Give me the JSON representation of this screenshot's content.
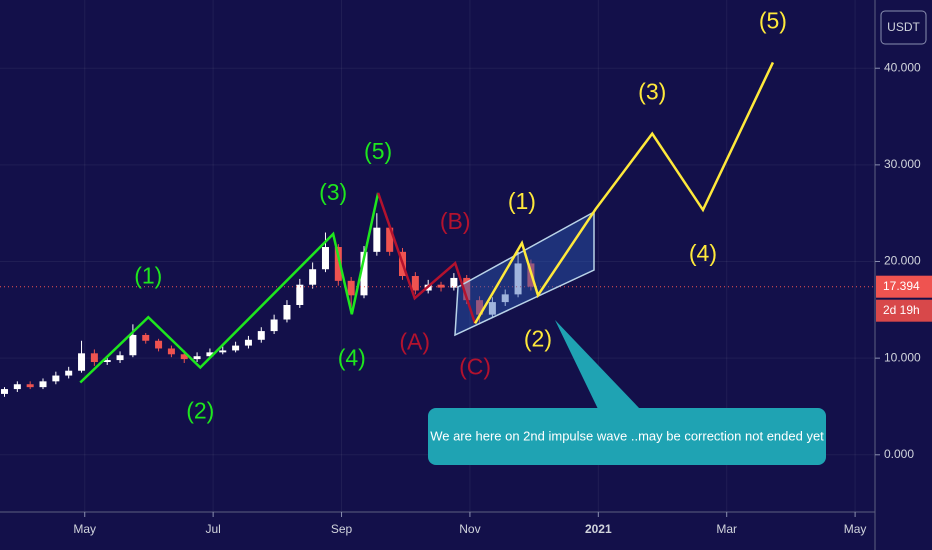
{
  "chart_data": {
    "type": "candlestick",
    "currency": "USDT",
    "up_color": "#ffffff",
    "down_color": "#ef5350",
    "grid": true,
    "xlim": [
      3.68,
      17.31
    ],
    "ylim": [
      -5.92,
      47.06
    ],
    "xticks": [
      {
        "value": 5,
        "label": "May"
      },
      {
        "value": 7,
        "label": "Jul"
      },
      {
        "value": 9,
        "label": "Sep"
      },
      {
        "value": 11,
        "label": "Nov"
      },
      {
        "value": 13,
        "label": "2021"
      },
      {
        "value": 15,
        "label": "Mar"
      },
      {
        "value": 17,
        "label": "May"
      }
    ],
    "yticks": [
      {
        "value": 0,
        "label": "0.000"
      },
      {
        "value": 10,
        "label": "10.000"
      },
      {
        "value": 20,
        "label": "20.000"
      },
      {
        "value": 30,
        "label": "30.000"
      },
      {
        "value": 40,
        "label": "40.000"
      }
    ],
    "x": [
      3.75,
      3.95,
      4.15,
      4.35,
      4.55,
      4.75,
      4.95,
      5.15,
      5.35,
      5.55,
      5.75,
      5.95,
      6.15,
      6.35,
      6.55,
      6.75,
      6.95,
      7.15,
      7.35,
      7.55,
      7.75,
      7.95,
      8.15,
      8.35,
      8.55,
      8.75,
      8.95,
      9.15,
      9.35,
      9.55,
      9.75,
      9.95,
      10.15,
      10.35,
      10.55,
      10.75,
      10.95,
      11.15,
      11.35,
      11.55,
      11.75,
      11.95
    ],
    "open": [
      6.3,
      6.8,
      7.3,
      7.0,
      7.6,
      8.2,
      8.7,
      10.5,
      9.6,
      9.8,
      10.3,
      12.4,
      11.8,
      11.0,
      10.4,
      9.9,
      10.2,
      10.6,
      10.8,
      11.3,
      11.9,
      12.8,
      14.0,
      15.5,
      17.6,
      19.2,
      21.5,
      18.0,
      16.5,
      21.0,
      23.5,
      21.0,
      18.5,
      17.0,
      17.6,
      17.3,
      18.3,
      16.0,
      14.5,
      15.8,
      16.6,
      19.8
    ],
    "close": [
      6.8,
      7.3,
      7.0,
      7.6,
      8.2,
      8.7,
      10.5,
      9.6,
      9.8,
      10.3,
      12.4,
      11.8,
      11.0,
      10.4,
      9.9,
      10.2,
      10.6,
      10.8,
      11.3,
      11.9,
      12.8,
      14.0,
      15.5,
      17.6,
      19.2,
      21.5,
      18.0,
      16.5,
      21.0,
      23.5,
      21.0,
      18.5,
      17.0,
      17.6,
      17.3,
      18.3,
      16.0,
      14.5,
      15.8,
      16.6,
      19.8,
      17.4
    ],
    "high": [
      7.0,
      7.6,
      7.6,
      7.9,
      8.6,
      9.1,
      11.8,
      10.9,
      10.2,
      10.7,
      13.5,
      12.6,
      12.0,
      11.3,
      10.8,
      10.6,
      11.0,
      11.2,
      11.7,
      12.3,
      13.2,
      14.5,
      16.0,
      18.2,
      19.9,
      23.0,
      21.8,
      18.4,
      21.6,
      25.0,
      23.8,
      21.4,
      18.9,
      18.1,
      17.9,
      18.8,
      18.6,
      16.4,
      16.3,
      17.1,
      21.0,
      20.2
    ],
    "low": [
      6.0,
      6.5,
      6.8,
      6.8,
      7.3,
      7.9,
      8.5,
      9.2,
      9.3,
      9.5,
      10.1,
      11.5,
      10.7,
      10.1,
      9.5,
      9.6,
      10.0,
      10.4,
      10.6,
      11.0,
      11.6,
      12.5,
      13.7,
      15.2,
      17.2,
      18.9,
      17.5,
      15.0,
      16.2,
      20.6,
      20.6,
      18.1,
      16.6,
      16.7,
      16.9,
      17.0,
      15.6,
      13.5,
      14.2,
      15.4,
      16.3,
      17.0
    ],
    "last_price": 17.394,
    "countdown": "2d 19h",
    "waves": [
      {
        "color": "#1ee61e",
        "x": [
          4.93,
          5.99,
          6.8,
          8.87,
          9.16,
          9.57
        ],
        "y": [
          7.48,
          14.23,
          9.03,
          22.85,
          14.54,
          27.1
        ],
        "labels": [
          null,
          "(1)",
          "(2)",
          "(3)",
          "(4)",
          "(5)"
        ]
      },
      {
        "color": "#b3122e",
        "x": [
          9.57,
          10.14,
          10.77,
          11.08
        ],
        "y": [
          27.1,
          16.2,
          19.83,
          13.6
        ],
        "labels": [
          null,
          "(A)",
          "(B)",
          "(C)"
        ]
      },
      {
        "color": "#ffe93b",
        "x": [
          11.08,
          11.81,
          12.06,
          12.96,
          13.84,
          14.63,
          15.72
        ],
        "y": [
          13.6,
          21.91,
          16.51,
          25.44,
          33.23,
          25.34,
          40.6
        ],
        "labels": [
          null,
          "(1)",
          "(2)",
          null,
          "(3)",
          "(4)",
          "(5)"
        ]
      }
    ],
    "callout": "We are here on 2nd impulse wave ..may be correction not ended yet"
  }
}
